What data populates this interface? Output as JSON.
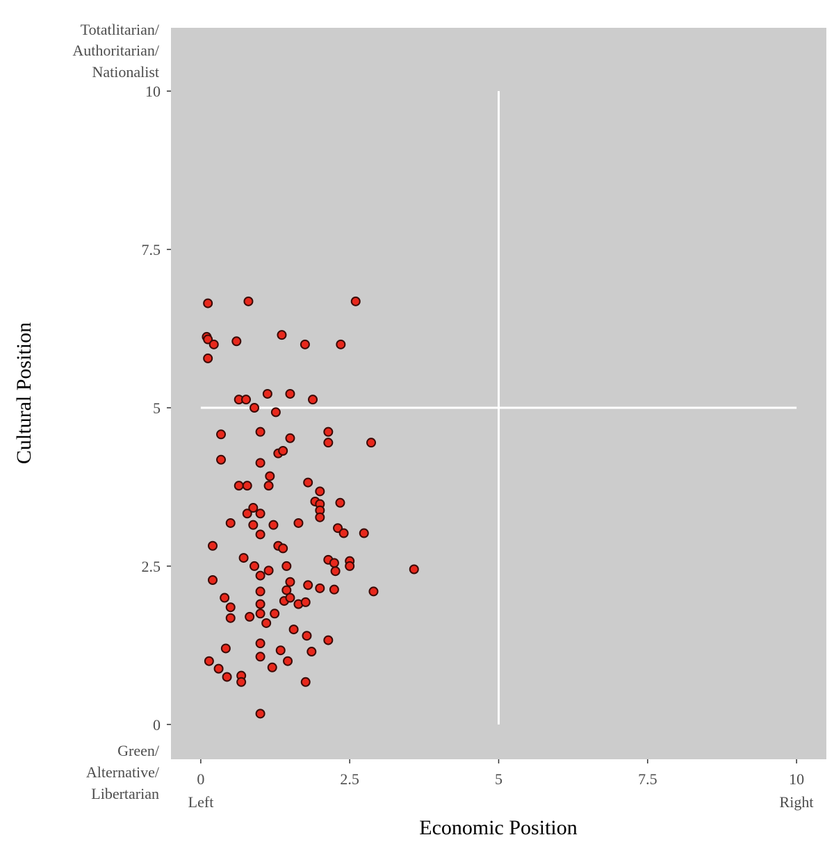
{
  "chart_data": {
    "type": "scatter",
    "xlabel": "Economic Position",
    "ylabel": "Cultural Position",
    "xlim": [
      -0.5,
      10.5
    ],
    "ylim": [
      -0.55,
      11.0
    ],
    "x_ticks": [
      "0",
      "2.5",
      "5",
      "7.5",
      "10"
    ],
    "y_ticks": [
      "0",
      "2.5",
      "5",
      "7.5",
      "10"
    ],
    "x_tick_values": [
      0,
      2.5,
      5,
      7.5,
      10
    ],
    "y_tick_values": [
      0,
      2.5,
      5,
      7.5,
      10
    ],
    "x_left_label": "Left",
    "x_right_label": "Right",
    "y_top_label": [
      "Totatlitarian/",
      "Authoritarian/",
      "Nationalist"
    ],
    "y_bottom_label": [
      "Green/",
      "Alternative/",
      "Libertarian"
    ],
    "reference_lines": [
      {
        "orientation": "vertical",
        "x": 5,
        "y_from": 0,
        "y_to": 10
      },
      {
        "orientation": "horizontal",
        "y": 5,
        "x_from": 0,
        "x_to": 10
      }
    ],
    "grid": false,
    "colors": {
      "panel_background": "#cccccc",
      "point_fill": "#e8281c",
      "point_stroke": "#3a0a06",
      "reference_line": "#ffffff"
    },
    "points": [
      {
        "x": 0.12,
        "y": 6.65
      },
      {
        "x": 0.8,
        "y": 6.68
      },
      {
        "x": 2.6,
        "y": 6.68
      },
      {
        "x": 0.1,
        "y": 6.12
      },
      {
        "x": 0.12,
        "y": 6.08
      },
      {
        "x": 0.22,
        "y": 6.0
      },
      {
        "x": 0.6,
        "y": 6.05
      },
      {
        "x": 1.36,
        "y": 6.15
      },
      {
        "x": 1.75,
        "y": 6.0
      },
      {
        "x": 2.35,
        "y": 6.0
      },
      {
        "x": 0.12,
        "y": 5.78
      },
      {
        "x": 0.64,
        "y": 5.13
      },
      {
        "x": 0.76,
        "y": 5.13
      },
      {
        "x": 1.12,
        "y": 5.22
      },
      {
        "x": 1.5,
        "y": 5.22
      },
      {
        "x": 1.88,
        "y": 5.13
      },
      {
        "x": 0.9,
        "y": 5.0
      },
      {
        "x": 1.26,
        "y": 4.93
      },
      {
        "x": 0.34,
        "y": 4.58
      },
      {
        "x": 1.0,
        "y": 4.62
      },
      {
        "x": 1.5,
        "y": 4.52
      },
      {
        "x": 2.14,
        "y": 4.62
      },
      {
        "x": 2.14,
        "y": 4.45
      },
      {
        "x": 2.86,
        "y": 4.45
      },
      {
        "x": 1.3,
        "y": 4.28
      },
      {
        "x": 1.38,
        "y": 4.32
      },
      {
        "x": 0.34,
        "y": 4.18
      },
      {
        "x": 1.0,
        "y": 4.13
      },
      {
        "x": 1.16,
        "y": 3.92
      },
      {
        "x": 0.64,
        "y": 3.77
      },
      {
        "x": 0.78,
        "y": 3.77
      },
      {
        "x": 1.14,
        "y": 3.77
      },
      {
        "x": 1.8,
        "y": 3.82
      },
      {
        "x": 2.0,
        "y": 3.68
      },
      {
        "x": 1.92,
        "y": 3.52
      },
      {
        "x": 2.0,
        "y": 3.48
      },
      {
        "x": 2.0,
        "y": 3.38
      },
      {
        "x": 2.34,
        "y": 3.5
      },
      {
        "x": 0.88,
        "y": 3.42
      },
      {
        "x": 0.78,
        "y": 3.33
      },
      {
        "x": 1.0,
        "y": 3.33
      },
      {
        "x": 2.0,
        "y": 3.27
      },
      {
        "x": 0.5,
        "y": 3.18
      },
      {
        "x": 0.88,
        "y": 3.15
      },
      {
        "x": 1.22,
        "y": 3.15
      },
      {
        "x": 1.64,
        "y": 3.18
      },
      {
        "x": 2.3,
        "y": 3.1
      },
      {
        "x": 1.0,
        "y": 3.0
      },
      {
        "x": 2.4,
        "y": 3.02
      },
      {
        "x": 2.74,
        "y": 3.02
      },
      {
        "x": 0.2,
        "y": 2.82
      },
      {
        "x": 1.3,
        "y": 2.82
      },
      {
        "x": 1.38,
        "y": 2.78
      },
      {
        "x": 0.72,
        "y": 2.63
      },
      {
        "x": 0.9,
        "y": 2.5
      },
      {
        "x": 1.44,
        "y": 2.5
      },
      {
        "x": 2.14,
        "y": 2.6
      },
      {
        "x": 2.24,
        "y": 2.55
      },
      {
        "x": 2.26,
        "y": 2.42
      },
      {
        "x": 2.5,
        "y": 2.58
      },
      {
        "x": 2.5,
        "y": 2.5
      },
      {
        "x": 3.58,
        "y": 2.45
      },
      {
        "x": 1.14,
        "y": 2.43
      },
      {
        "x": 1.0,
        "y": 2.35
      },
      {
        "x": 0.2,
        "y": 2.28
      },
      {
        "x": 1.5,
        "y": 2.25
      },
      {
        "x": 1.44,
        "y": 2.12
      },
      {
        "x": 1.8,
        "y": 2.2
      },
      {
        "x": 2.0,
        "y": 2.15
      },
      {
        "x": 2.24,
        "y": 2.13
      },
      {
        "x": 2.9,
        "y": 2.1
      },
      {
        "x": 1.0,
        "y": 2.1
      },
      {
        "x": 0.4,
        "y": 2.0
      },
      {
        "x": 1.4,
        "y": 1.95
      },
      {
        "x": 1.5,
        "y": 2.0
      },
      {
        "x": 1.64,
        "y": 1.9
      },
      {
        "x": 1.76,
        "y": 1.93
      },
      {
        "x": 0.5,
        "y": 1.85
      },
      {
        "x": 1.0,
        "y": 1.9
      },
      {
        "x": 1.0,
        "y": 1.75
      },
      {
        "x": 1.24,
        "y": 1.75
      },
      {
        "x": 0.5,
        "y": 1.68
      },
      {
        "x": 0.82,
        "y": 1.7
      },
      {
        "x": 1.1,
        "y": 1.6
      },
      {
        "x": 1.56,
        "y": 1.5
      },
      {
        "x": 1.78,
        "y": 1.4
      },
      {
        "x": 2.14,
        "y": 1.33
      },
      {
        "x": 1.0,
        "y": 1.28
      },
      {
        "x": 0.42,
        "y": 1.2
      },
      {
        "x": 1.34,
        "y": 1.17
      },
      {
        "x": 1.86,
        "y": 1.15
      },
      {
        "x": 1.0,
        "y": 1.07
      },
      {
        "x": 0.14,
        "y": 1.0
      },
      {
        "x": 1.46,
        "y": 1.0
      },
      {
        "x": 0.3,
        "y": 0.88
      },
      {
        "x": 1.2,
        "y": 0.9
      },
      {
        "x": 0.44,
        "y": 0.75
      },
      {
        "x": 0.68,
        "y": 0.77
      },
      {
        "x": 0.68,
        "y": 0.67
      },
      {
        "x": 1.76,
        "y": 0.67
      },
      {
        "x": 1.0,
        "y": 0.17
      }
    ]
  }
}
